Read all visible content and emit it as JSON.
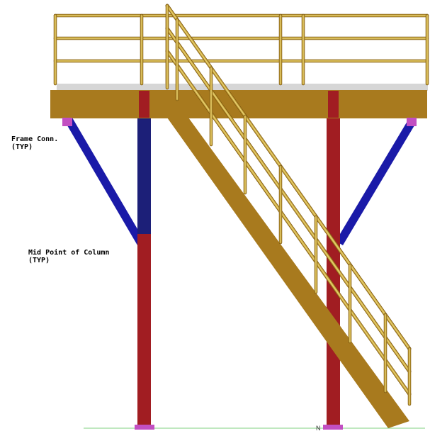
{
  "annotations": {
    "frame_conn_line1": "Frame Conn.",
    "frame_conn_line2": "(TYP)",
    "mid_point_line1": "Mid Point of Column",
    "mid_point_line2": "(TYP)",
    "north_marker": "N"
  },
  "colors": {
    "beam": "#a87a1e",
    "beam_dark": "#7a5510",
    "railing": "#c9a63a",
    "railing_highlight": "#e8d27a",
    "column": "#a11d22",
    "column_upper": "#1c1f78",
    "brace": "#1a1aa8",
    "connection": "#c24fc2",
    "deck": "#d6d6d6",
    "ground": "#7fd07f"
  }
}
